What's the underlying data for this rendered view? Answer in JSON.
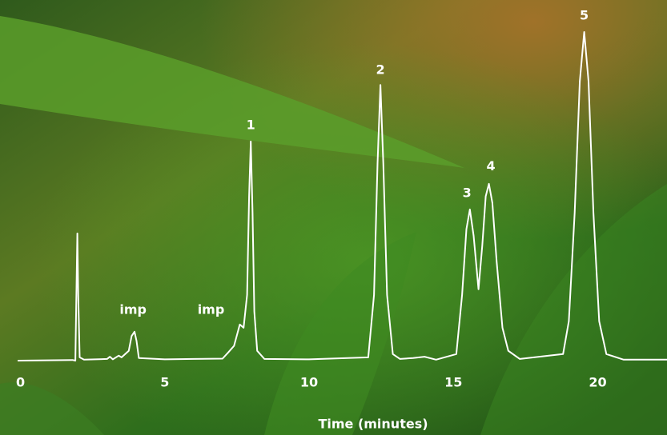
{
  "chart_data": {
    "type": "line",
    "xlabel": "Time (minutes)",
    "xlim": [
      -0.1,
      22.4
    ],
    "ylim": [
      0,
      100
    ],
    "xticks": [
      0,
      5,
      10,
      15,
      20
    ],
    "grid": false,
    "series": [
      {
        "color": "#ffffff",
        "x": [
          -0.1,
          1.8,
          1.9,
          1.97,
          2.0,
          2.05,
          2.2,
          3.0,
          3.1,
          3.2,
          3.4,
          3.5,
          3.75,
          3.85,
          3.95,
          4.02,
          4.1,
          5.0,
          6.0,
          7.0,
          7.2,
          7.4,
          7.6,
          7.73,
          7.85,
          7.92,
          7.98,
          8.04,
          8.1,
          8.2,
          8.45,
          10.0,
          12.05,
          12.25,
          12.37,
          12.47,
          12.57,
          12.7,
          12.9,
          13.15,
          13.6,
          14.0,
          14.4,
          15.1,
          15.3,
          15.45,
          15.57,
          15.7,
          15.87,
          16.0,
          16.12,
          16.23,
          16.35,
          16.5,
          16.7,
          16.9,
          17.3,
          18.8,
          19.0,
          19.2,
          19.38,
          19.53,
          19.68,
          19.85,
          20.05,
          20.3,
          20.9,
          22.4
        ],
        "values": [
          0,
          0.2,
          0,
          38.7,
          20,
          1,
          0.3,
          0.5,
          1.2,
          0.4,
          1.5,
          1,
          3,
          7.5,
          8.8,
          6,
          0.8,
          0.4,
          0.5,
          0.6,
          2.5,
          4.5,
          11,
          10,
          20,
          50,
          66.7,
          45,
          15,
          3,
          0.5,
          0.4,
          1,
          20,
          60,
          83.9,
          60,
          20,
          2,
          0.5,
          0.8,
          1.2,
          0.3,
          2,
          20,
          40,
          46,
          38,
          21.7,
          35,
          50,
          53.8,
          48,
          30,
          10,
          3,
          0.5,
          2,
          12,
          45,
          85,
          100,
          85,
          45,
          12,
          2,
          0.3,
          0.3
        ]
      }
    ],
    "annotations": [
      {
        "text": "imp",
        "x": 3.9,
        "y": 15.3
      },
      {
        "text": "imp",
        "x": 6.6,
        "y": 15.3
      },
      {
        "text": "1",
        "x": 7.98,
        "y": 71.5
      },
      {
        "text": "2",
        "x": 12.47,
        "y": 88.3
      },
      {
        "text": "3",
        "x": 15.47,
        "y": 50.9
      },
      {
        "text": "4",
        "x": 16.3,
        "y": 59
      },
      {
        "text": "5",
        "x": 19.53,
        "y": 104.9
      }
    ]
  }
}
